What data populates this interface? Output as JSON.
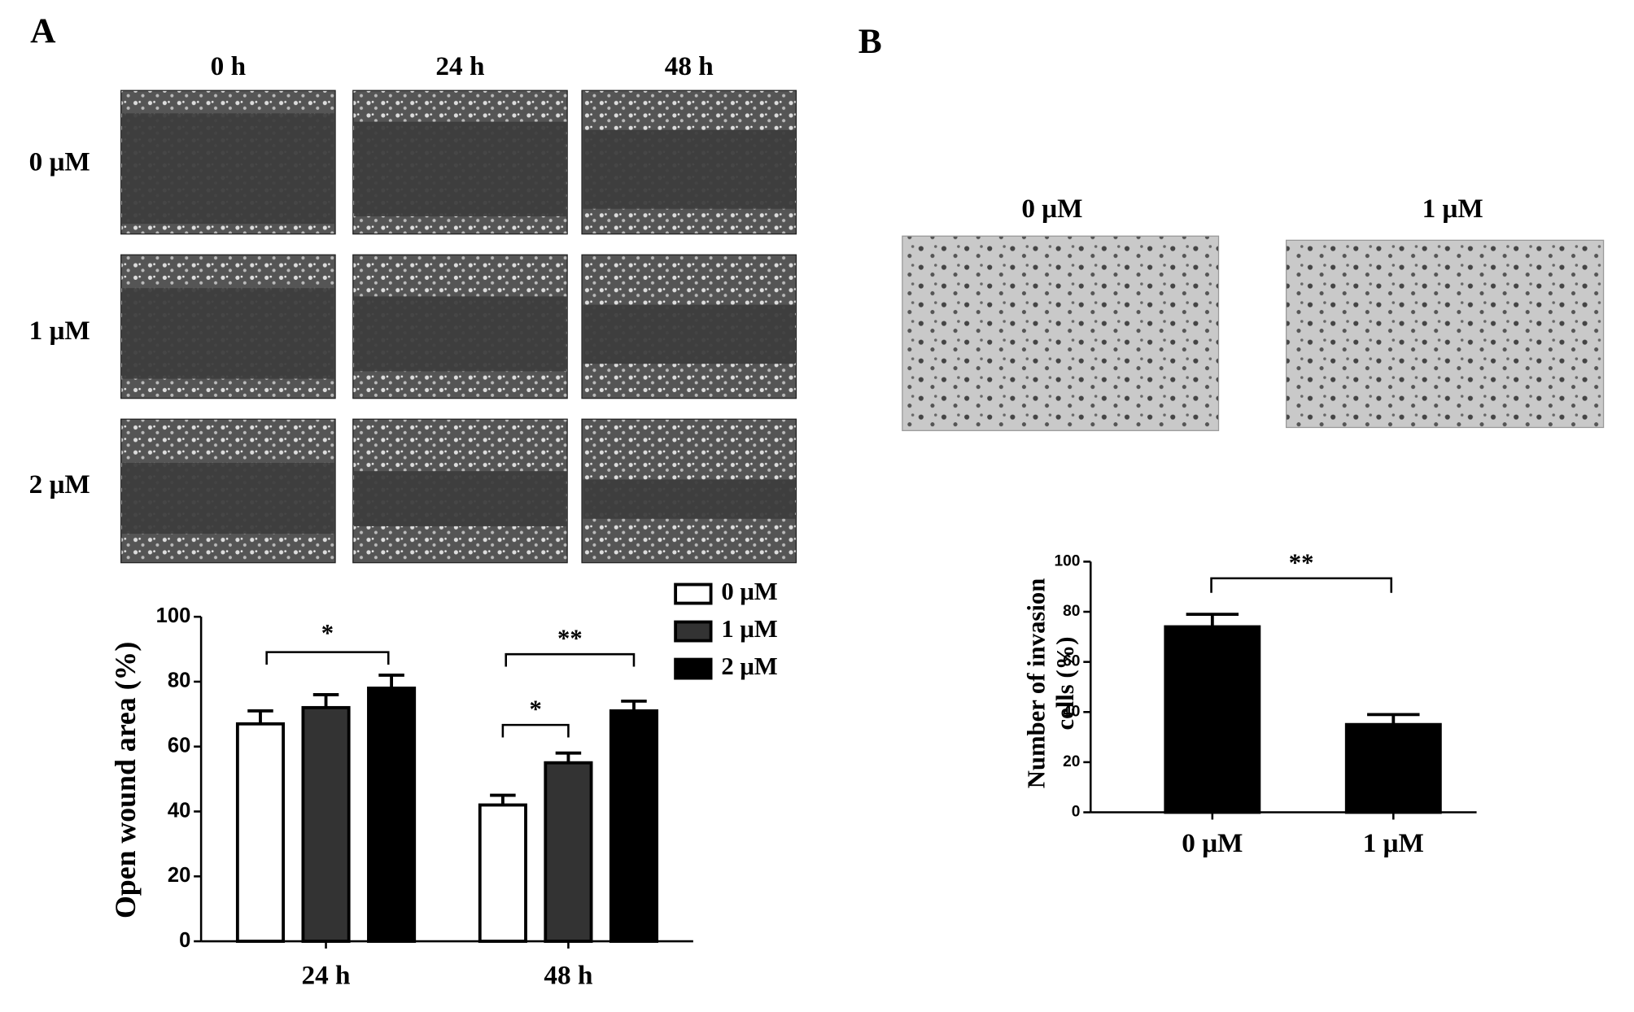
{
  "panel_a": {
    "label": "A",
    "image_columns": [
      "0 h",
      "24 h",
      "48 h"
    ],
    "image_rows": [
      "0 μM",
      "1 μM",
      "2 μM"
    ]
  },
  "panel_b": {
    "label": "B",
    "image_labels": [
      "0 μM",
      "1 μM"
    ]
  },
  "chart_data": [
    {
      "type": "bar",
      "y_label": "Open wound area (%)",
      "categories": [
        "24 h",
        "48 h"
      ],
      "series": [
        {
          "name": "0 μM",
          "color": "#ffffff",
          "values": [
            67,
            42
          ],
          "errors": [
            4,
            3
          ]
        },
        {
          "name": "1 μM",
          "color": "#333333",
          "values": [
            72,
            55
          ],
          "errors": [
            4,
            3
          ]
        },
        {
          "name": "2 μM",
          "color": "#000000",
          "values": [
            78,
            71
          ],
          "errors": [
            4,
            3
          ]
        }
      ],
      "ylim": [
        0,
        100
      ],
      "yticks": [
        0,
        20,
        40,
        60,
        80,
        100
      ],
      "legend": "top-right",
      "annotations": [
        "*",
        "**",
        "*"
      ]
    },
    {
      "type": "bar",
      "y_label": [
        "Number of invasion",
        "cells (%)"
      ],
      "categories": [
        "0 μM",
        "1 μM"
      ],
      "color": "#000000",
      "values": [
        74,
        35
      ],
      "errors": [
        5,
        4
      ],
      "ylim": [
        0,
        100
      ],
      "yticks": [
        0,
        20,
        40,
        60,
        80,
        100
      ],
      "annotations": [
        "**"
      ]
    }
  ]
}
